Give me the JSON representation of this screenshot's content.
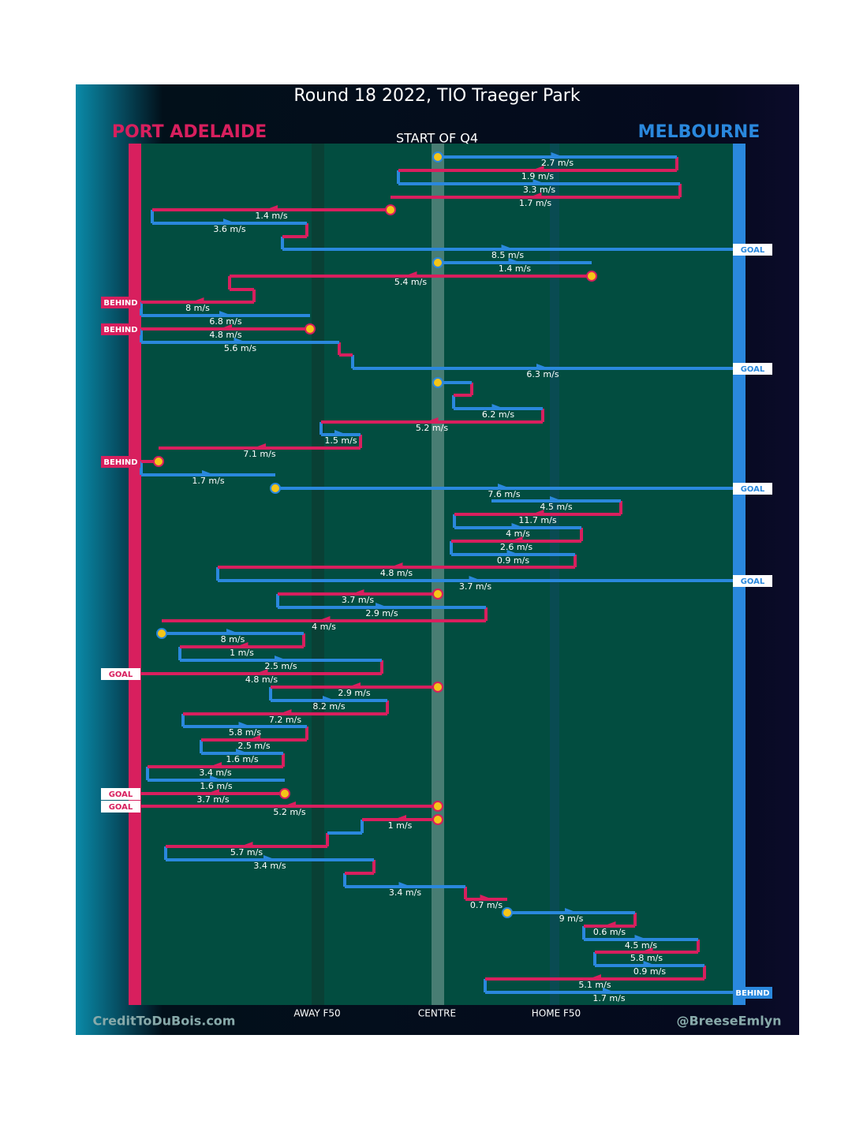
{
  "header": {
    "title": "Round 18 2022, TIO Traeger Park",
    "team_left": "PORT ADELAIDE",
    "team_right": "MELBOURNE",
    "start": "START OF Q4"
  },
  "speeds": [
    "2.7 m/s",
    "1.9 m/s",
    "3.3 m/s",
    "1.7 m/s",
    "1.4 m/s",
    "3.6 m/s",
    "8.5 m/s",
    "1.4 m/s",
    "5.4 m/s",
    "8 m/s",
    "6.8 m/s",
    "4.8 m/s",
    "5.6 m/s",
    "6.3 m/s",
    "6.2 m/s",
    "5.2 m/s",
    "1.5 m/s",
    "7.1 m/s",
    "1.7 m/s",
    "7.6 m/s",
    "4.5 m/s",
    "11.7 m/s",
    "4 m/s",
    "2.6 m/s",
    "0.9 m/s",
    "4.8 m/s",
    "3.7 m/s",
    "3.7 m/s",
    "2.9 m/s",
    "4 m/s",
    "8 m/s",
    "1 m/s",
    "2.5 m/s",
    "4.8 m/s",
    "2.9 m/s",
    "8.2 m/s",
    "7.2 m/s",
    "5.8 m/s",
    "2.5 m/s",
    "1.6 m/s",
    "3.4 m/s",
    "1.6 m/s",
    "3.7 m/s",
    "5.2 m/s",
    "1 m/s",
    "5.7 m/s",
    "3.4 m/s",
    "3.4 m/s",
    "0.7 m/s",
    "9 m/s",
    "0.6 m/s",
    "4.5 m/s",
    "5.8 m/s",
    "0.9 m/s",
    "5.1 m/s",
    "1.7 m/s"
  ],
  "outcomes": [
    "GOAL",
    "BEHIND",
    "BEHIND",
    "GOAL",
    "BEHIND",
    "GOAL",
    "GOAL",
    "GOAL",
    "GOAL",
    "GOAL",
    "BEHIND"
  ],
  "axis": {
    "away": "AWAY F50",
    "centre": "CENTRE",
    "home": "HOME F50"
  },
  "footer": {
    "left": "CreditToDuBois.com",
    "right": "@BreeseEmlyn"
  }
}
